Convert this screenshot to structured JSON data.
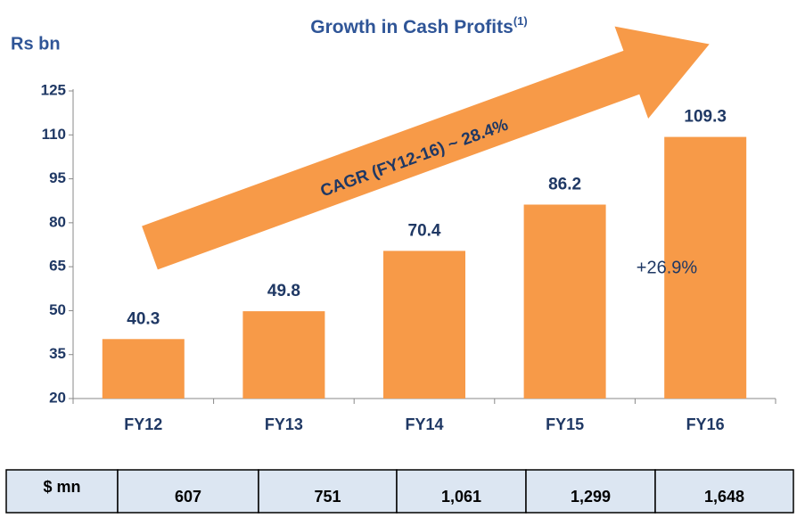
{
  "chart_data": {
    "type": "bar",
    "title": "Growth in Cash Profits",
    "title_note": "(1)",
    "y_label": "Rs bn",
    "categories": [
      "FY12",
      "FY13",
      "FY14",
      "FY15",
      "FY16"
    ],
    "values": [
      40.3,
      49.8,
      70.4,
      86.2,
      109.3
    ],
    "color": "#f79a48",
    "ylim": [
      20,
      125
    ],
    "yticks": [
      20,
      35,
      50,
      65,
      80,
      95,
      110,
      125
    ],
    "annotations": [
      "CAGR (FY12-16) ~ 28.4%",
      "+26.9%"
    ]
  },
  "table": {
    "header": "$ mn",
    "cells": [
      "607",
      "751",
      "1,061",
      "1,299",
      "1,648"
    ]
  }
}
